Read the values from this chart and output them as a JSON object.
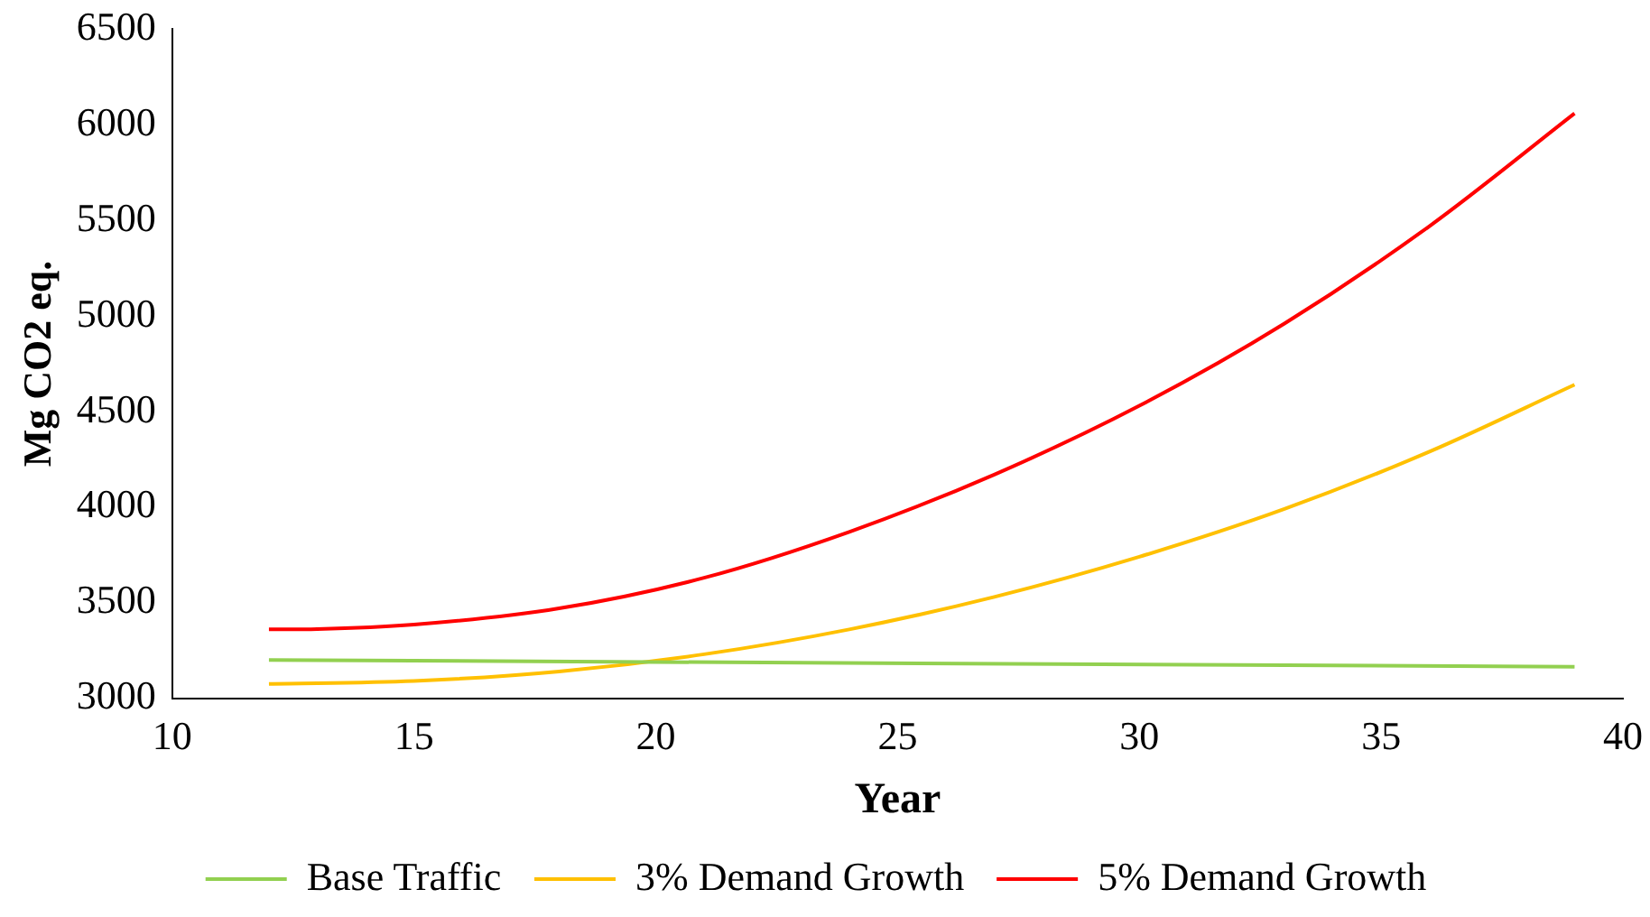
{
  "chart_data": {
    "type": "line",
    "xlabel": "Year",
    "ylabel": "Mg CO2 eq.",
    "xlim": [
      10,
      40
    ],
    "xticks": [
      10,
      15,
      20,
      25,
      30,
      35,
      40
    ],
    "ylim": [
      3000,
      6500
    ],
    "yticks": [
      3000,
      3500,
      4000,
      4500,
      5000,
      5500,
      6000,
      6500
    ],
    "grid": false,
    "legend": "bottom",
    "marker": "none",
    "line_style": "solid",
    "series": [
      {
        "name": "Base Traffic",
        "color": "#92d050",
        "x": [
          12,
          39
        ],
        "values": [
          3200,
          3165
        ]
      },
      {
        "name": "3% Demand Growth",
        "color": "#ffc000",
        "x": [
          12,
          15,
          18,
          21,
          24,
          27,
          30,
          33,
          36,
          39
        ],
        "values": [
          3075,
          3090,
          3140,
          3230,
          3360,
          3530,
          3740,
          3990,
          4290,
          4640
        ]
      },
      {
        "name": "5% Demand Growth",
        "color": "#ff0000",
        "x": [
          12,
          13,
          15,
          18,
          21,
          24,
          27,
          30,
          33,
          36,
          39
        ],
        "values": [
          3360,
          3362,
          3385,
          3470,
          3630,
          3870,
          4170,
          4530,
          4960,
          5470,
          6060
        ]
      }
    ]
  }
}
